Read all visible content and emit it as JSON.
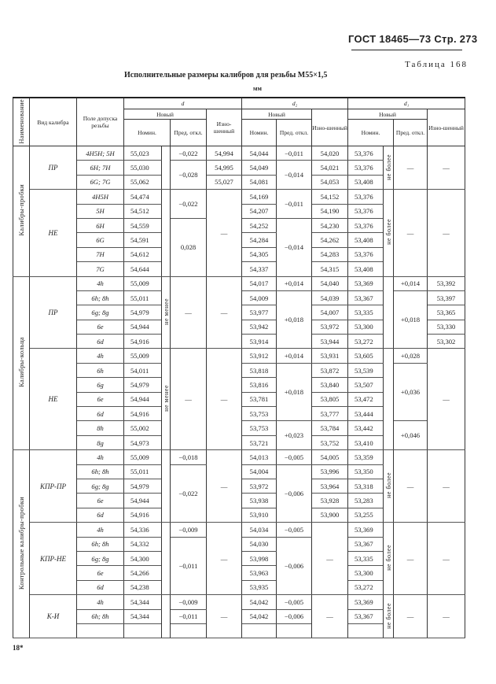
{
  "header": {
    "standard": "ГОСТ 18465—73 Стр. 273",
    "table_number": "Таблица 168",
    "title": "Исполнительные размеры калибров для резьбы M55×1,5",
    "unit": "мм"
  },
  "columns": {
    "name": "Наименование",
    "kind": "Вид калибра",
    "field": "Поле допуска резьбы",
    "d": "d",
    "d2": "d₂",
    "d1": "d₁",
    "new": "Новый",
    "nominal": "Номин.",
    "deviation": "Пред. откл.",
    "worn": "Изно-шенный"
  },
  "groups": [
    {
      "name": "Калибры-пробки",
      "sections": [
        {
          "label": "ПР",
          "field": [
            "4H5H; 5H",
            "6H; 7H",
            "6G; 7G"
          ],
          "d_nom": [
            "55,023",
            "55,030",
            "55,062"
          ],
          "d_note": [
            [
              "",
              3
            ]
          ],
          "d_dev": [
            [
              "−0,022",
              1
            ],
            [
              "−0,028",
              2
            ]
          ],
          "d_worn": [
            "54,994",
            "54,995",
            "55,027"
          ],
          "d2_nom": [
            "54,044",
            "54,049",
            "54,081"
          ],
          "d2_dev": [
            [
              "−0,011",
              1
            ],
            [
              "−0,014",
              2
            ]
          ],
          "d2_worn": [
            "54,020",
            "54,021",
            "54,053"
          ],
          "d1_nom": [
            "53,376",
            "53,376",
            "53,408"
          ],
          "d1_note": [
            [
              "не более",
              3
            ]
          ],
          "d1_dev": [
            [
              "—",
              3
            ]
          ],
          "d1_worn": [
            [
              "—",
              3
            ]
          ]
        },
        {
          "label": "НЕ",
          "field": [
            "4H5H",
            "5H",
            "6H",
            "6G",
            "7H",
            "7G"
          ],
          "d_nom": [
            "54,474",
            "54,512",
            "54,559",
            "54,591",
            "54,612",
            "54,644"
          ],
          "d_note": [
            [
              "",
              6
            ]
          ],
          "d_dev": [
            [
              "−0,022",
              2
            ],
            [
              "0,028",
              4
            ]
          ],
          "d_worn": [
            [
              "—",
              6
            ]
          ],
          "d2_nom": [
            "54,169",
            "54,207",
            "54,252",
            "54,284",
            "54,305",
            "54,337"
          ],
          "d2_dev": [
            [
              "−0,011",
              2
            ],
            [
              "−0,014",
              4
            ]
          ],
          "d2_worn": [
            "54,152",
            "54,190",
            "54,230",
            "54,262",
            "54,283",
            "54,315"
          ],
          "d1_nom": [
            "53,376",
            "53,376",
            "53,376",
            "53,408",
            "53,376",
            "53,408"
          ],
          "d1_note": [
            [
              "не более",
              6
            ]
          ],
          "d1_dev": [
            [
              "—",
              6
            ]
          ],
          "d1_worn": [
            [
              "—",
              6
            ]
          ]
        }
      ]
    },
    {
      "name": "Калибры-кольца",
      "sections": [
        {
          "label": "ПР",
          "field": [
            "4h",
            "6h; 8h",
            "6g; 8g",
            "6e",
            "6d"
          ],
          "d_nom": [
            "55,009",
            "55,011",
            "54,979",
            "54,944",
            "54,916"
          ],
          "d_note": [
            [
              "не менее",
              5
            ]
          ],
          "d_dev": [
            [
              "—",
              5
            ]
          ],
          "d_worn": [
            [
              "—",
              5
            ]
          ],
          "d2_nom": [
            "54,017",
            "54,009",
            "53,977",
            "53,942",
            "53,914"
          ],
          "d2_dev": [
            [
              "+0,014",
              1
            ],
            [
              "+0,018",
              4
            ]
          ],
          "d2_worn": [
            "54,040",
            "54,039",
            "54,007",
            "53,972",
            "53,944"
          ],
          "d1_nom": [
            "53,369",
            "53,367",
            "53,335",
            "53,300",
            "53,272"
          ],
          "d1_note": [
            [
              "",
              5
            ]
          ],
          "d1_dev": [
            [
              "+0,014",
              1
            ],
            [
              "+0,018",
              4
            ]
          ],
          "d1_worn": [
            "53,392",
            "53,397",
            "53,365",
            "53,330",
            "53,302"
          ]
        },
        {
          "label": "НЕ",
          "field": [
            "4h",
            "6h",
            "6g",
            "6e",
            "6d",
            "8h",
            "8g"
          ],
          "d_nom": [
            "55,009",
            "54,011",
            "54,979",
            "54,944",
            "54,916",
            "55,002",
            "54,973"
          ],
          "d_note": [
            [
              "не менее",
              7
            ]
          ],
          "d_dev": [
            [
              "—",
              7
            ]
          ],
          "d_worn": [
            [
              "—",
              7
            ]
          ],
          "d2_nom": [
            "53,912",
            "53,818",
            "53,816",
            "53,781",
            "53,753",
            "53,753",
            "53,721"
          ],
          "d2_dev": [
            [
              "+0,014",
              1
            ],
            [
              "+0,018",
              4
            ],
            [
              "+0,023",
              2
            ]
          ],
          "d2_worn": [
            "53,931",
            "53,872",
            "53,840",
            "53,805",
            "53,777",
            "53,784",
            "53,752"
          ],
          "d1_nom": [
            "53,605",
            "53,539",
            "53,507",
            "53,472",
            "53,444",
            "53,442",
            "53,410"
          ],
          "d1_note": [
            [
              "",
              7
            ]
          ],
          "d1_dev": [
            [
              "+0,028",
              1
            ],
            [
              "+0,036",
              4
            ],
            [
              "+0,046",
              2
            ]
          ],
          "d1_worn": [
            [
              "—",
              7
            ]
          ]
        }
      ]
    },
    {
      "name": "Контрольные калибры-пробки",
      "sections": [
        {
          "label": "КПР-ПР",
          "field": [
            "4h",
            "6h; 8h",
            "6g; 8g",
            "6e",
            "6d"
          ],
          "d_nom": [
            "55,009",
            "55,011",
            "54,979",
            "54,944",
            "54,916"
          ],
          "d_note": [
            [
              "",
              5
            ]
          ],
          "d_dev": [
            [
              "−0,018",
              1
            ],
            [
              "−0,022",
              4
            ]
          ],
          "d_worn": [
            [
              "—",
              5
            ]
          ],
          "d2_nom": [
            "54,013",
            "54,004",
            "53,972",
            "53,938",
            "53,910"
          ],
          "d2_dev": [
            [
              "−0,005",
              1
            ],
            [
              "−0,006",
              4
            ]
          ],
          "d2_worn": [
            "54,005",
            "53,996",
            "53,964",
            "53,928",
            "53,900"
          ],
          "d1_nom": [
            "53,359",
            "53,350",
            "53,318",
            "53,283",
            "53,255"
          ],
          "d1_note": [
            [
              "не более",
              5
            ]
          ],
          "d1_dev": [
            [
              "—",
              5
            ]
          ],
          "d1_worn": [
            [
              "—",
              5
            ]
          ]
        },
        {
          "label": "КПР-НЕ",
          "field": [
            "4h",
            "6h; 8h",
            "6g; 8g",
            "6e",
            "6d"
          ],
          "d_nom": [
            "54,336",
            "54,332",
            "54,300",
            "54,266",
            "54,238"
          ],
          "d_note": [
            [
              "",
              5
            ]
          ],
          "d_dev": [
            [
              "−0,009",
              1
            ],
            [
              "−0,011",
              4
            ]
          ],
          "d_worn": [
            [
              "—",
              5
            ]
          ],
          "d2_nom": [
            "54,034",
            "54,030",
            "53,998",
            "53,963",
            "53,935"
          ],
          "d2_dev": [
            [
              "−0,005",
              1
            ],
            [
              "−0,006",
              4
            ]
          ],
          "d2_worn": [
            [
              "—",
              5
            ]
          ],
          "d1_nom": [
            "53,369",
            "53,367",
            "53,335",
            "53,300",
            "53,272"
          ],
          "d1_note": [
            [
              "не более",
              5
            ]
          ],
          "d1_dev": [
            [
              "—",
              5
            ]
          ],
          "d1_worn": [
            [
              "—",
              5
            ]
          ]
        },
        {
          "label": "К-И",
          "field": [
            "4h",
            "6h; 8h",
            ""
          ],
          "d_nom": [
            "54,344",
            "54,344",
            ""
          ],
          "d_note": [
            [
              "",
              3
            ]
          ],
          "d_dev": [
            "−0,009",
            "−0,011",
            ""
          ],
          "d_worn": [
            [
              "—",
              3
            ]
          ],
          "d2_nom": [
            "54,042",
            "54,042",
            ""
          ],
          "d2_dev": [
            "−0,005",
            "−0,006",
            ""
          ],
          "d2_worn": [
            [
              "—",
              3
            ]
          ],
          "d1_nom": [
            "53,369",
            "53,367",
            ""
          ],
          "d1_note": [
            [
              "не более",
              3
            ]
          ],
          "d1_dev": [
            [
              "—",
              3
            ]
          ],
          "d1_worn": [
            [
              "—",
              3
            ]
          ]
        }
      ]
    }
  ],
  "footer": {
    "page_mark": "18*"
  }
}
